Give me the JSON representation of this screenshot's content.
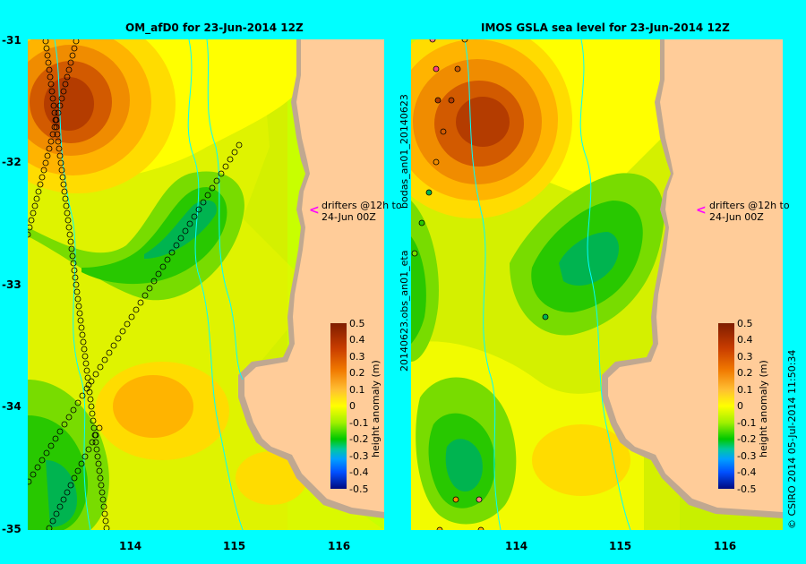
{
  "left_panel": {
    "title": "OM_afD0 for 23-Jun-2014 12Z"
  },
  "right_panel": {
    "title": "IMOS GSLA sea level  for 23-Jun-2014 12Z",
    "side_label_1": "bodas_an01_20140623",
    "side_label_2": "20140623.obs_an01_eta"
  },
  "lat_labels": [
    "-31",
    "-32",
    "-33",
    "-34",
    "-35"
  ],
  "lon_labels": [
    "114",
    "115",
    "116"
  ],
  "annotation": {
    "line1": "drifters @12h to",
    "line2": "24-Jun 00Z"
  },
  "colorbar": {
    "title": "height anomaly (m)",
    "ticks": [
      "0.5",
      "0.4",
      "0.3",
      "0.2",
      "0.1",
      "0",
      "-0.1",
      "-0.2",
      "-0.3",
      "-0.4",
      "-0.5"
    ],
    "range": [
      -0.5,
      0.5
    ]
  },
  "credit": "© CSIRO 2014   05-Jul-2014 11:50:34",
  "colors": {
    "background": "#00ffff",
    "land": "#ffcc99",
    "coast": "#c0a890",
    "drifter_arrow": "#ff00ff"
  },
  "map_extent": {
    "lon": [
      113.0,
      116.6
    ],
    "lat": [
      -35.0,
      -31.0
    ]
  }
}
